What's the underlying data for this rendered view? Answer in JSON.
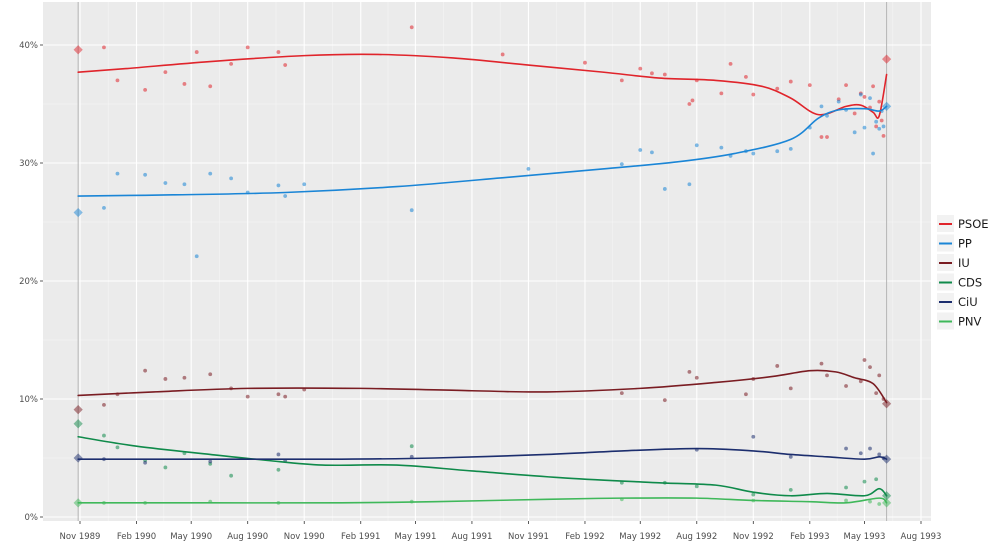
{
  "chart_data": {
    "type": "line",
    "title": "",
    "xlabel": "",
    "ylabel": "",
    "ylim": [
      0,
      42
    ],
    "x_range": [
      "1989-09-15",
      "1993-08-20"
    ],
    "y_ticks": [
      {
        "value": 0,
        "label": "0%"
      },
      {
        "value": 10,
        "label": "10%"
      },
      {
        "value": 20,
        "label": "20%"
      },
      {
        "value": 30,
        "label": "30%"
      },
      {
        "value": 40,
        "label": "40%"
      }
    ],
    "x_ticks": [
      {
        "date": "1989-11-01",
        "label": "Nov 1989"
      },
      {
        "date": "1990-02-01",
        "label": "Feb 1990"
      },
      {
        "date": "1990-05-01",
        "label": "May 1990"
      },
      {
        "date": "1990-08-01",
        "label": "Aug 1990"
      },
      {
        "date": "1990-11-01",
        "label": "Nov 1990"
      },
      {
        "date": "1991-02-01",
        "label": "Feb 1991"
      },
      {
        "date": "1991-05-01",
        "label": "May 1991"
      },
      {
        "date": "1991-08-01",
        "label": "Aug 1991"
      },
      {
        "date": "1991-11-01",
        "label": "Nov 1991"
      },
      {
        "date": "1992-02-01",
        "label": "Feb 1992"
      },
      {
        "date": "1992-05-01",
        "label": "May 1992"
      },
      {
        "date": "1992-08-01",
        "label": "Aug 1992"
      },
      {
        "date": "1992-11-01",
        "label": "Nov 1992"
      },
      {
        "date": "1993-02-01",
        "label": "Feb 1993"
      },
      {
        "date": "1993-05-01",
        "label": "May 1993"
      },
      {
        "date": "1993-08-01",
        "label": "Aug 1993"
      }
    ],
    "election_dates": [
      "1989-10-29",
      "1993-06-06"
    ],
    "grid": true,
    "legend_position": "right",
    "series": [
      {
        "name": "PSOE",
        "color": "#e0242b",
        "trend": [
          [
            "1989-10-29",
            37.7
          ],
          [
            "1990-01-15",
            38.0
          ],
          [
            "1990-06-01",
            38.6
          ],
          [
            "1990-11-01",
            39.1
          ],
          [
            "1991-03-01",
            39.2
          ],
          [
            "1991-07-01",
            38.9
          ],
          [
            "1991-11-01",
            38.3
          ],
          [
            "1992-03-01",
            37.7
          ],
          [
            "1992-06-01",
            37.2
          ],
          [
            "1992-09-01",
            37.0
          ],
          [
            "1992-11-15",
            36.5
          ],
          [
            "1993-01-01",
            35.5
          ],
          [
            "1993-02-15",
            34.1
          ],
          [
            "1993-04-01",
            34.8
          ],
          [
            "1993-04-25",
            34.9
          ],
          [
            "1993-05-15",
            34.3
          ],
          [
            "1993-05-25",
            34.0
          ],
          [
            "1993-06-06",
            37.5
          ]
        ],
        "polls": [
          [
            "1989-12-10",
            39.8
          ],
          [
            "1990-01-01",
            37.0
          ],
          [
            "1990-02-15",
            36.2
          ],
          [
            "1990-03-20",
            37.7
          ],
          [
            "1990-04-20",
            36.7
          ],
          [
            "1990-05-10",
            39.4
          ],
          [
            "1990-06-01",
            36.5
          ],
          [
            "1990-07-05",
            38.4
          ],
          [
            "1990-08-01",
            39.8
          ],
          [
            "1990-09-20",
            39.4
          ],
          [
            "1990-10-01",
            38.3
          ],
          [
            "1991-04-25",
            41.5
          ],
          [
            "1991-09-20",
            39.2
          ],
          [
            "1992-02-01",
            38.5
          ],
          [
            "1992-04-01",
            37.0
          ],
          [
            "1992-05-01",
            38.0
          ],
          [
            "1992-05-20",
            37.6
          ],
          [
            "1992-06-10",
            37.5
          ],
          [
            "1992-07-20",
            35.0
          ],
          [
            "1992-07-25",
            35.3
          ],
          [
            "1992-08-01",
            37.0
          ],
          [
            "1992-09-10",
            35.9
          ],
          [
            "1992-09-25",
            38.4
          ],
          [
            "1992-10-20",
            37.3
          ],
          [
            "1992-11-01",
            35.8
          ],
          [
            "1992-12-10",
            36.3
          ],
          [
            "1993-01-01",
            36.9
          ],
          [
            "1993-02-01",
            36.6
          ],
          [
            "1993-02-20",
            32.2
          ],
          [
            "1993-03-01",
            32.2
          ],
          [
            "1993-03-20",
            35.4
          ],
          [
            "1993-04-01",
            36.6
          ],
          [
            "1993-04-15",
            34.2
          ],
          [
            "1993-04-25",
            35.9
          ],
          [
            "1993-05-01",
            35.6
          ],
          [
            "1993-05-10",
            34.7
          ],
          [
            "1993-05-15",
            36.5
          ],
          [
            "1993-05-20",
            33.1
          ],
          [
            "1993-05-25",
            35.2
          ],
          [
            "1993-05-29",
            33.6
          ],
          [
            "1993-06-01",
            32.3
          ]
        ],
        "results": [
          [
            "1989-10-29",
            39.6
          ],
          [
            "1993-06-06",
            38.8
          ]
        ]
      },
      {
        "name": "PP",
        "color": "#1a85d6",
        "trend": [
          [
            "1989-10-29",
            27.2
          ],
          [
            "1990-04-01",
            27.3
          ],
          [
            "1990-10-01",
            27.5
          ],
          [
            "1991-04-01",
            28.0
          ],
          [
            "1991-10-01",
            28.8
          ],
          [
            "1992-03-01",
            29.5
          ],
          [
            "1992-07-01",
            30.1
          ],
          [
            "1992-10-01",
            30.8
          ],
          [
            "1993-01-01",
            32.0
          ],
          [
            "1993-02-15",
            33.8
          ],
          [
            "1993-03-20",
            34.5
          ],
          [
            "1993-05-01",
            34.6
          ],
          [
            "1993-05-25",
            34.4
          ],
          [
            "1993-06-06",
            34.8
          ]
        ],
        "polls": [
          [
            "1989-12-10",
            26.2
          ],
          [
            "1990-01-01",
            29.1
          ],
          [
            "1990-02-15",
            29.0
          ],
          [
            "1990-03-20",
            28.3
          ],
          [
            "1990-04-20",
            28.2
          ],
          [
            "1990-05-10",
            22.1
          ],
          [
            "1990-06-01",
            29.1
          ],
          [
            "1990-07-05",
            28.7
          ],
          [
            "1990-08-01",
            27.5
          ],
          [
            "1990-09-20",
            28.1
          ],
          [
            "1990-10-01",
            27.2
          ],
          [
            "1990-11-01",
            28.2
          ],
          [
            "1991-04-25",
            26.0
          ],
          [
            "1991-11-01",
            29.5
          ],
          [
            "1992-04-01",
            29.9
          ],
          [
            "1992-05-01",
            31.1
          ],
          [
            "1992-05-20",
            30.9
          ],
          [
            "1992-06-10",
            27.8
          ],
          [
            "1992-07-20",
            28.2
          ],
          [
            "1992-08-01",
            31.5
          ],
          [
            "1992-09-10",
            31.3
          ],
          [
            "1992-09-25",
            30.6
          ],
          [
            "1992-10-20",
            31.0
          ],
          [
            "1992-11-01",
            30.8
          ],
          [
            "1992-12-10",
            31.0
          ],
          [
            "1993-01-01",
            31.2
          ],
          [
            "1993-02-01",
            33.0
          ],
          [
            "1993-02-20",
            34.8
          ],
          [
            "1993-03-01",
            34.0
          ],
          [
            "1993-03-20",
            35.2
          ],
          [
            "1993-04-01",
            34.5
          ],
          [
            "1993-04-15",
            32.6
          ],
          [
            "1993-04-25",
            35.8
          ],
          [
            "1993-05-01",
            33.0
          ],
          [
            "1993-05-10",
            35.5
          ],
          [
            "1993-05-15",
            30.8
          ],
          [
            "1993-05-20",
            33.5
          ],
          [
            "1993-05-25",
            32.9
          ],
          [
            "1993-05-29",
            34.4
          ],
          [
            "1993-06-01",
            33.1
          ]
        ],
        "results": [
          [
            "1989-10-29",
            25.8
          ],
          [
            "1993-06-06",
            34.8
          ]
        ]
      },
      {
        "name": "IU",
        "color": "#7a1c22",
        "trend": [
          [
            "1989-10-29",
            10.3
          ],
          [
            "1990-03-01",
            10.6
          ],
          [
            "1990-08-01",
            10.9
          ],
          [
            "1991-02-01",
            10.9
          ],
          [
            "1991-08-01",
            10.7
          ],
          [
            "1991-12-01",
            10.6
          ],
          [
            "1992-05-01",
            10.9
          ],
          [
            "1992-09-01",
            11.4
          ],
          [
            "1992-12-01",
            11.9
          ],
          [
            "1993-02-01",
            12.4
          ],
          [
            "1993-03-15",
            12.3
          ],
          [
            "1993-04-15",
            11.8
          ],
          [
            "1993-05-15",
            11.3
          ],
          [
            "1993-06-06",
            9.7
          ]
        ],
        "polls": [
          [
            "1989-12-10",
            9.5
          ],
          [
            "1990-01-01",
            10.4
          ],
          [
            "1990-02-15",
            12.4
          ],
          [
            "1990-03-20",
            11.7
          ],
          [
            "1990-04-20",
            11.8
          ],
          [
            "1990-06-01",
            12.1
          ],
          [
            "1990-07-05",
            10.9
          ],
          [
            "1990-08-01",
            10.2
          ],
          [
            "1990-09-20",
            10.4
          ],
          [
            "1990-10-01",
            10.2
          ],
          [
            "1990-11-01",
            10.8
          ],
          [
            "1992-04-01",
            10.5
          ],
          [
            "1992-06-10",
            9.9
          ],
          [
            "1992-07-20",
            12.3
          ],
          [
            "1992-08-01",
            11.8
          ],
          [
            "1992-10-20",
            10.4
          ],
          [
            "1992-11-01",
            11.7
          ],
          [
            "1992-12-10",
            12.8
          ],
          [
            "1993-01-01",
            10.9
          ],
          [
            "1993-02-20",
            13.0
          ],
          [
            "1993-03-01",
            12.0
          ],
          [
            "1993-04-01",
            11.1
          ],
          [
            "1993-04-25",
            11.5
          ],
          [
            "1993-05-01",
            13.3
          ],
          [
            "1993-05-10",
            12.7
          ],
          [
            "1993-05-20",
            10.5
          ],
          [
            "1993-05-25",
            12.0
          ],
          [
            "1993-06-01",
            10.0
          ]
        ],
        "results": [
          [
            "1989-10-29",
            9.1
          ],
          [
            "1993-06-06",
            9.6
          ]
        ]
      },
      {
        "name": "CDS",
        "color": "#0f8a4a",
        "trend": [
          [
            "1989-10-29",
            6.8
          ],
          [
            "1990-02-01",
            6.0
          ],
          [
            "1990-06-01",
            5.3
          ],
          [
            "1990-09-01",
            4.8
          ],
          [
            "1990-12-01",
            4.4
          ],
          [
            "1991-04-01",
            4.4
          ],
          [
            "1991-08-01",
            3.9
          ],
          [
            "1992-01-01",
            3.3
          ],
          [
            "1992-06-01",
            2.9
          ],
          [
            "1992-09-01",
            2.7
          ],
          [
            "1992-11-01",
            2.1
          ],
          [
            "1993-01-01",
            1.8
          ],
          [
            "1993-03-01",
            2.0
          ],
          [
            "1993-05-01",
            1.8
          ],
          [
            "1993-05-25",
            2.4
          ],
          [
            "1993-06-06",
            1.8
          ]
        ],
        "polls": [
          [
            "1989-12-10",
            6.9
          ],
          [
            "1990-01-01",
            5.9
          ],
          [
            "1990-02-15",
            4.8
          ],
          [
            "1990-03-20",
            4.2
          ],
          [
            "1990-04-20",
            5.4
          ],
          [
            "1990-06-01",
            4.5
          ],
          [
            "1990-07-05",
            3.5
          ],
          [
            "1990-09-20",
            4.0
          ],
          [
            "1991-04-25",
            6.0
          ],
          [
            "1992-04-01",
            2.9
          ],
          [
            "1992-06-10",
            2.9
          ],
          [
            "1992-08-01",
            2.6
          ],
          [
            "1992-11-01",
            1.9
          ],
          [
            "1993-01-01",
            2.3
          ],
          [
            "1993-04-01",
            2.5
          ],
          [
            "1993-05-01",
            3.0
          ],
          [
            "1993-05-20",
            3.2
          ]
        ],
        "results": [
          [
            "1989-10-29",
            7.9
          ],
          [
            "1993-06-06",
            1.8
          ]
        ]
      },
      {
        "name": "CiU",
        "color": "#1c2e6e",
        "trend": [
          [
            "1989-10-29",
            4.9
          ],
          [
            "1990-06-01",
            4.9
          ],
          [
            "1991-01-01",
            4.9
          ],
          [
            "1991-06-01",
            5.0
          ],
          [
            "1991-12-01",
            5.3
          ],
          [
            "1992-04-01",
            5.6
          ],
          [
            "1992-08-01",
            5.8
          ],
          [
            "1992-11-01",
            5.6
          ],
          [
            "1993-01-01",
            5.3
          ],
          [
            "1993-03-01",
            5.1
          ],
          [
            "1993-05-01",
            4.9
          ],
          [
            "1993-05-25",
            5.1
          ],
          [
            "1993-06-06",
            4.9
          ]
        ],
        "polls": [
          [
            "1989-12-10",
            4.9
          ],
          [
            "1990-02-15",
            4.6
          ],
          [
            "1990-06-01",
            4.7
          ],
          [
            "1990-09-20",
            5.3
          ],
          [
            "1990-10-01",
            4.8
          ],
          [
            "1991-04-25",
            5.1
          ],
          [
            "1992-08-01",
            5.7
          ],
          [
            "1992-11-01",
            6.8
          ],
          [
            "1993-01-01",
            5.1
          ],
          [
            "1993-04-01",
            5.8
          ],
          [
            "1993-04-25",
            5.4
          ],
          [
            "1993-05-10",
            5.8
          ],
          [
            "1993-05-25",
            5.3
          ],
          [
            "1993-06-01",
            5.0
          ]
        ],
        "results": [
          [
            "1989-10-29",
            5.0
          ],
          [
            "1993-06-06",
            4.9
          ]
        ]
      },
      {
        "name": "PNV",
        "color": "#3fb85a",
        "trend": [
          [
            "1989-10-29",
            1.2
          ],
          [
            "1990-06-01",
            1.2
          ],
          [
            "1991-01-01",
            1.2
          ],
          [
            "1991-06-01",
            1.3
          ],
          [
            "1991-12-01",
            1.5
          ],
          [
            "1992-04-01",
            1.6
          ],
          [
            "1992-08-01",
            1.6
          ],
          [
            "1992-11-01",
            1.4
          ],
          [
            "1993-02-01",
            1.3
          ],
          [
            "1993-04-01",
            1.2
          ],
          [
            "1993-05-25",
            1.6
          ],
          [
            "1993-06-06",
            1.2
          ]
        ],
        "polls": [
          [
            "1989-12-10",
            1.2
          ],
          [
            "1990-02-15",
            1.2
          ],
          [
            "1990-06-01",
            1.3
          ],
          [
            "1990-09-20",
            1.2
          ],
          [
            "1991-04-25",
            1.3
          ],
          [
            "1992-04-01",
            1.5
          ],
          [
            "1992-11-01",
            1.4
          ],
          [
            "1993-04-01",
            1.4
          ],
          [
            "1993-05-10",
            1.3
          ],
          [
            "1993-05-25",
            1.1
          ]
        ],
        "results": [
          [
            "1989-10-29",
            1.2
          ],
          [
            "1993-06-06",
            1.2
          ]
        ]
      }
    ]
  }
}
